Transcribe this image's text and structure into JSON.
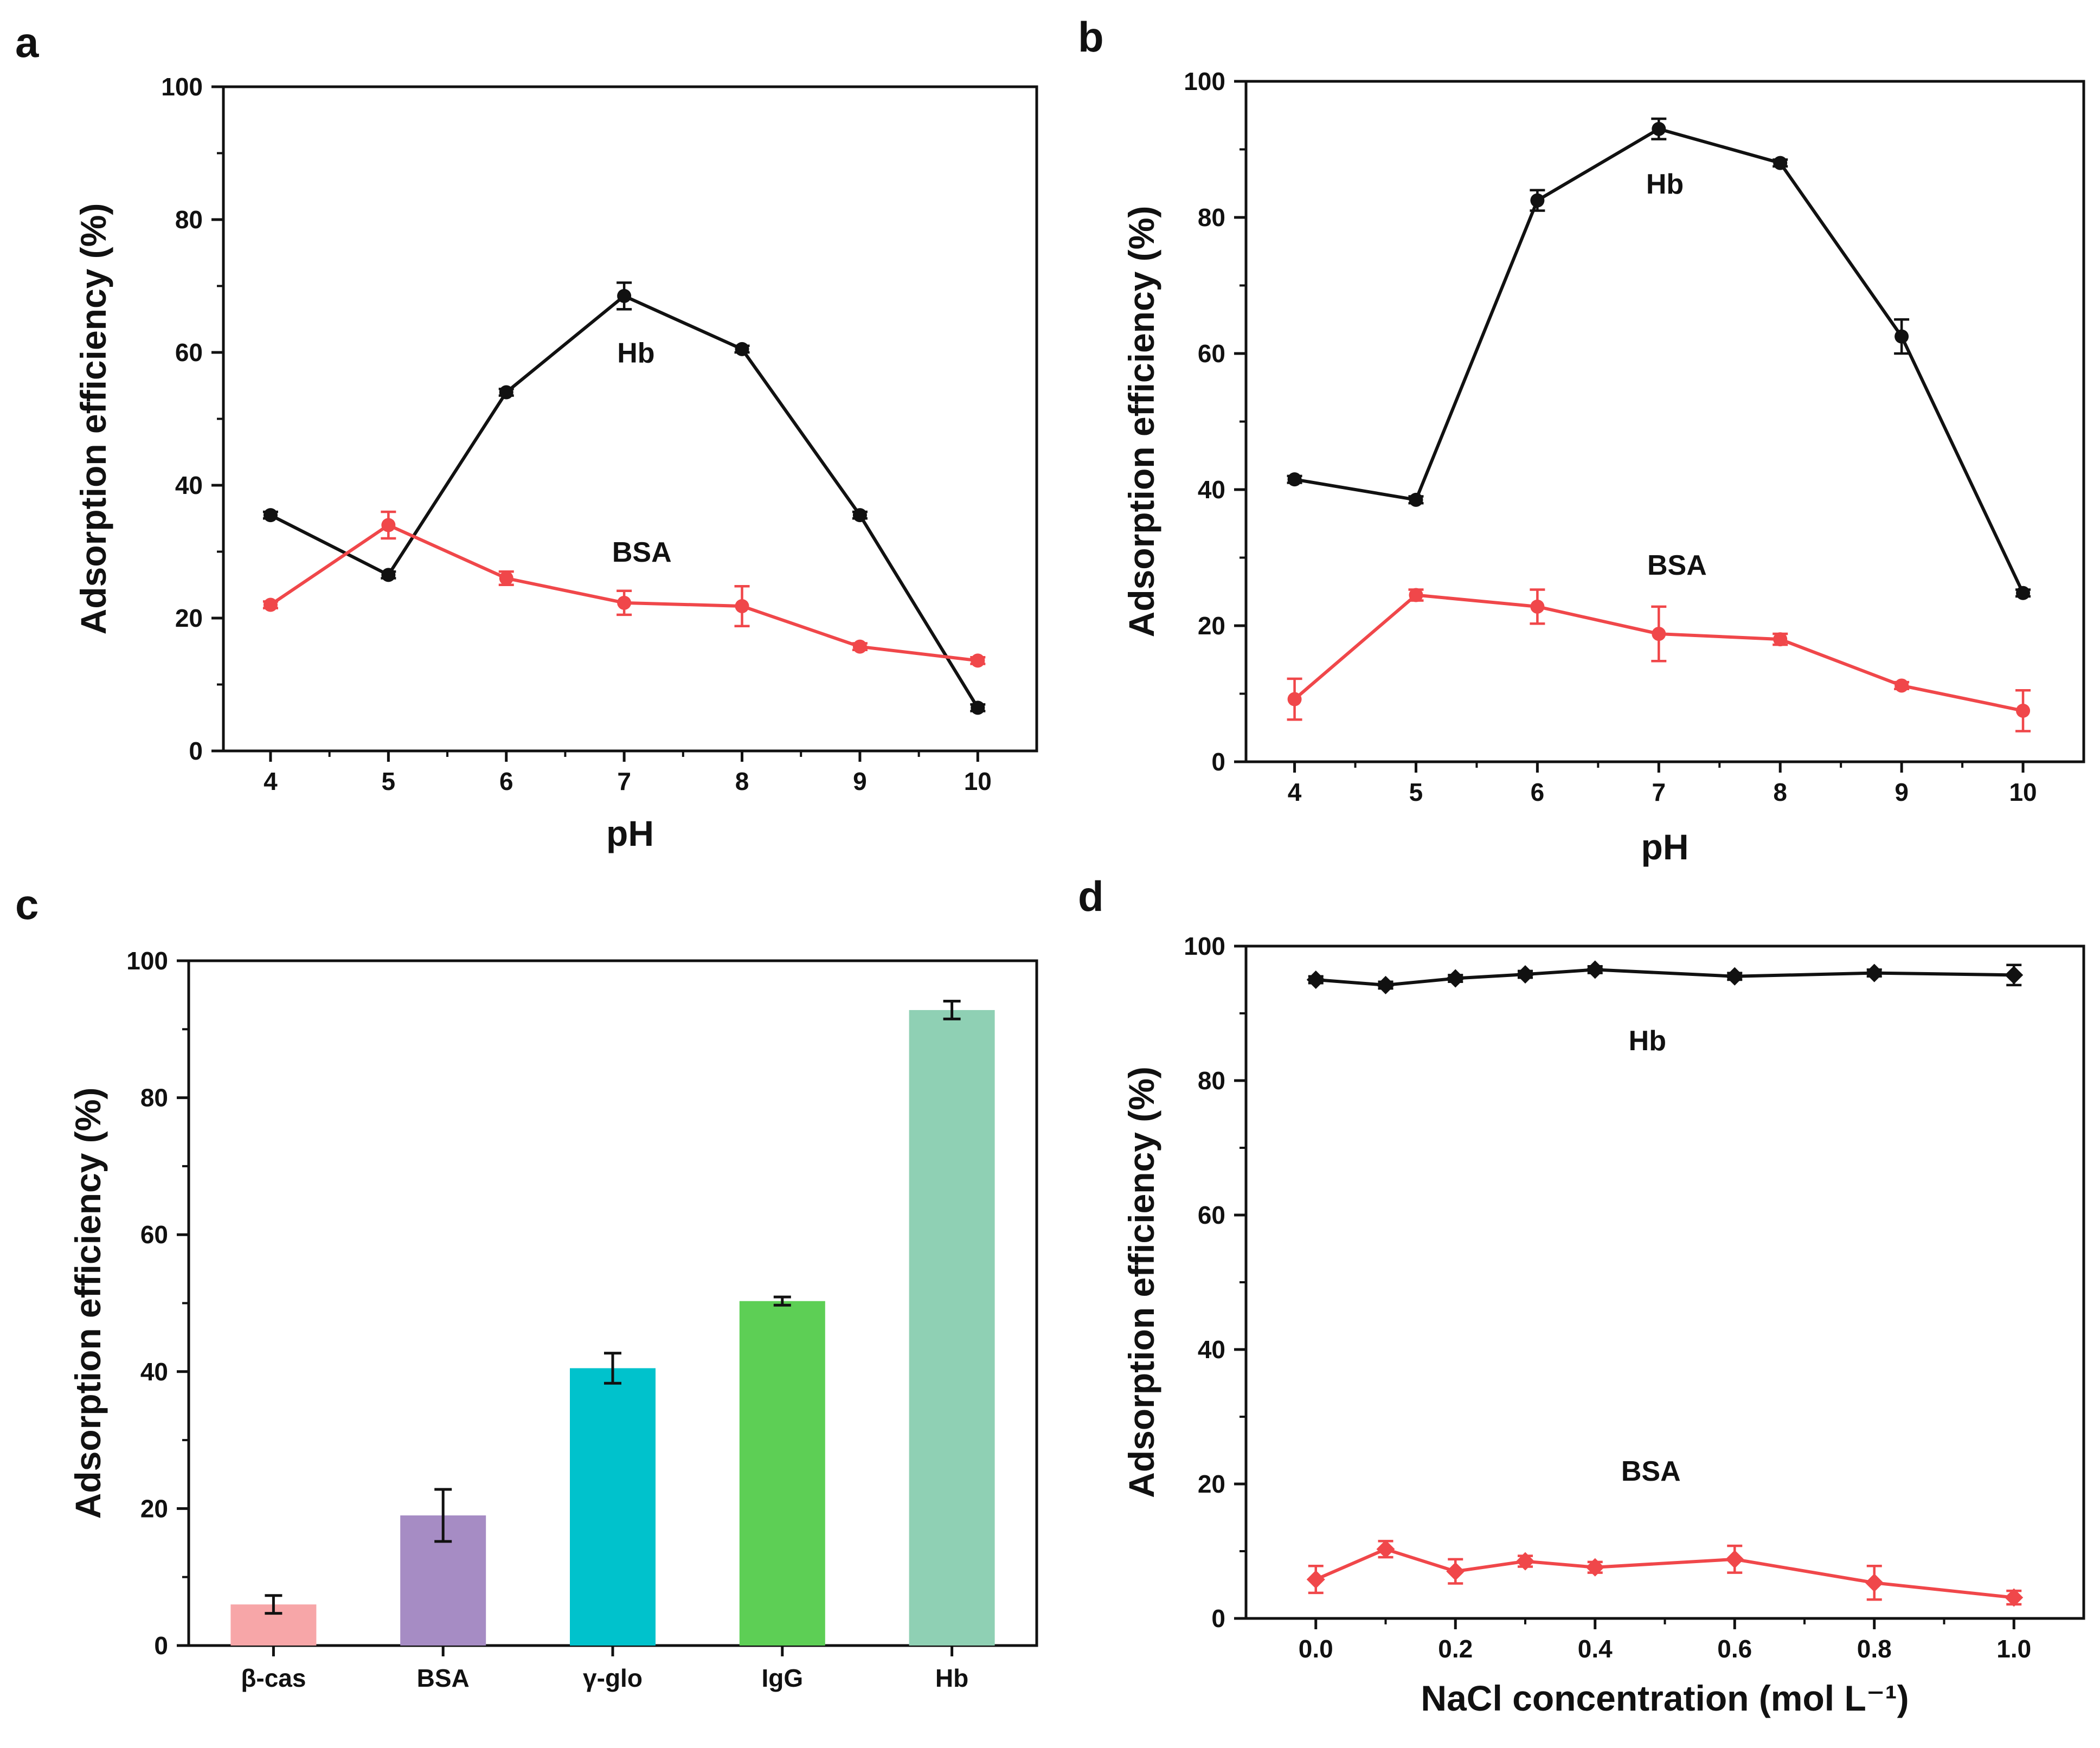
{
  "colors": {
    "hb": "#111111",
    "bsa": "#f0474a",
    "axis": "#111111",
    "bars": [
      "#f7a6a8",
      "#a68cc4",
      "#00c2cc",
      "#5dcf55",
      "#8fd0b4"
    ]
  },
  "chart_data": [
    {
      "id": "a",
      "type": "line",
      "panel_label": "a",
      "xlabel": "pH",
      "ylabel": "Adsorption efficiency (%)",
      "x": [
        4,
        5,
        6,
        7,
        8,
        9,
        10
      ],
      "xticks": [
        "4",
        "5",
        "6",
        "7",
        "8",
        "9",
        "10"
      ],
      "xlim": [
        3.6,
        10.5
      ],
      "ylim": [
        0,
        100
      ],
      "yticks": [
        "0",
        "20",
        "40",
        "60",
        "80",
        "100"
      ],
      "series": [
        {
          "name": "Hb",
          "color": "#111111",
          "marker": "circle",
          "values": [
            35.5,
            26.5,
            54,
            68.5,
            60.5,
            35.5,
            6.5
          ],
          "errors": [
            0.5,
            0.5,
            0.5,
            2,
            0.5,
            0.5,
            0.5
          ]
        },
        {
          "name": "BSA",
          "color": "#f0474a",
          "marker": "circle",
          "values": [
            22,
            34,
            26,
            22.3,
            21.8,
            15.7,
            13.6
          ],
          "errors": [
            0.5,
            2,
            1,
            1.8,
            3,
            0.5,
            0.5
          ]
        }
      ],
      "annotations": [
        {
          "text": "Hb",
          "x": 7.1,
          "y": 58.5
        },
        {
          "text": "BSA",
          "x": 7.15,
          "y": 28.5
        }
      ]
    },
    {
      "id": "b",
      "type": "line",
      "panel_label": "b",
      "xlabel": "pH",
      "ylabel": "Adsorption efficiency (%)",
      "x": [
        4,
        5,
        6,
        7,
        8,
        9,
        10
      ],
      "xticks": [
        "4",
        "5",
        "6",
        "7",
        "8",
        "9",
        "10"
      ],
      "xlim": [
        3.6,
        10.5
      ],
      "ylim": [
        0,
        100
      ],
      "yticks": [
        "0",
        "20",
        "40",
        "60",
        "80",
        "100"
      ],
      "series": [
        {
          "name": "Hb",
          "color": "#111111",
          "marker": "circle",
          "values": [
            41.5,
            38.5,
            82.5,
            93,
            88,
            62.5,
            24.8
          ],
          "errors": [
            0.5,
            0.5,
            1.5,
            1.5,
            0.5,
            2.5,
            0.5
          ]
        },
        {
          "name": "BSA",
          "color": "#f0474a",
          "marker": "circle",
          "values": [
            9.2,
            24.5,
            22.8,
            18.8,
            18,
            11.2,
            7.5
          ],
          "errors": [
            3,
            0.8,
            2.5,
            4,
            0.8,
            0.5,
            3
          ]
        }
      ],
      "annotations": [
        {
          "text": "Hb",
          "x": 7.05,
          "y": 83.5
        },
        {
          "text": "BSA",
          "x": 7.15,
          "y": 27.5
        }
      ]
    },
    {
      "id": "c",
      "type": "bar",
      "panel_label": "c",
      "xlabel": "",
      "ylabel": "Adsorption efficiency (%)",
      "categories": [
        "β-cas",
        "BSA",
        "γ-glo",
        "IgG",
        "Hb"
      ],
      "values": [
        6,
        19,
        40.5,
        50.3,
        92.8
      ],
      "errors": [
        1.3,
        3.8,
        2.2,
        0.6,
        1.3
      ],
      "xlim": [
        0.5,
        5.5
      ],
      "ylim": [
        0,
        100
      ],
      "yticks": [
        "0",
        "20",
        "40",
        "60",
        "80",
        "100"
      ]
    },
    {
      "id": "d",
      "type": "line",
      "panel_label": "d",
      "xlabel": "NaCl concentration (mol L⁻¹)",
      "ylabel": "Adsorption efficiency (%)",
      "x": [
        0.0,
        0.1,
        0.2,
        0.3,
        0.4,
        0.6,
        0.8,
        1.0
      ],
      "xticks": [
        "0.0",
        "0.2",
        "0.4",
        "0.6",
        "0.8",
        "1.0"
      ],
      "xtick_values": [
        0.0,
        0.2,
        0.4,
        0.6,
        0.8,
        1.0
      ],
      "xlim": [
        -0.1,
        1.1
      ],
      "ylim": [
        0,
        100
      ],
      "yticks": [
        "0",
        "20",
        "40",
        "60",
        "80",
        "100"
      ],
      "series": [
        {
          "name": "Hb",
          "color": "#111111",
          "marker": "diamond",
          "values": [
            95,
            94.2,
            95.2,
            95.8,
            96.5,
            95.5,
            96,
            95.7
          ],
          "errors": [
            0.5,
            0.5,
            0.5,
            0.5,
            0.5,
            0.5,
            0.5,
            1.5
          ]
        },
        {
          "name": "BSA",
          "color": "#f0474a",
          "marker": "diamond",
          "values": [
            5.8,
            10.3,
            7,
            8.5,
            7.6,
            8.8,
            5.3,
            3.1
          ],
          "errors": [
            2,
            1.2,
            1.8,
            0.8,
            0.8,
            2,
            2.5,
            1
          ]
        }
      ],
      "annotations": [
        {
          "text": "Hb",
          "x": 0.475,
          "y": 84.5
        },
        {
          "text": "BSA",
          "x": 0.48,
          "y": 20.5
        }
      ]
    }
  ]
}
